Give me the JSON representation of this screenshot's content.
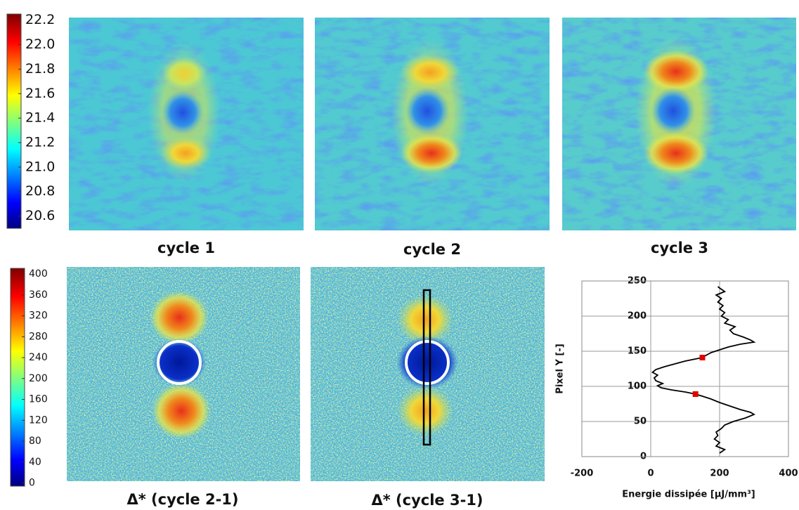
{
  "chart_data": [
    {
      "type": "heatmap",
      "panels": [
        "cycle 1",
        "cycle 2",
        "cycle 3"
      ],
      "ylim": [
        20.5,
        22.25
      ],
      "yticks": [
        20.6,
        20.8,
        {
          "value": 21,
          "label": "21.0"
        },
        21.2,
        21.4,
        21.6,
        21.8,
        {
          "value": 22,
          "label": "22.0"
        },
        22.2
      ]
    },
    {
      "type": "heatmap",
      "panels": [
        "Δ* (cycle 2-1)",
        "Δ* (cycle 3-1)"
      ],
      "ylim": [
        -6,
        411
      ],
      "yticks": [
        0,
        40,
        80,
        120,
        160,
        200,
        240,
        280,
        320,
        360,
        400
      ]
    },
    {
      "type": "line",
      "xlabel": "Energie dissipée [µJ/mm³]",
      "ylabel": "Pixel Y [-]",
      "xlim": [
        -200,
        400
      ],
      "xticks": [
        -200,
        0,
        200,
        400
      ],
      "ylim": [
        0,
        250
      ],
      "yticks": [
        0,
        50,
        100,
        150,
        200,
        250
      ],
      "grid": true,
      "color": "#000000",
      "x": [
        200,
        215,
        190,
        200,
        185,
        195,
        190,
        205,
        215,
        240,
        275,
        300,
        290,
        260,
        230,
        200,
        175,
        150,
        130,
        100,
        60,
        30,
        20,
        35,
        15,
        10,
        20,
        5,
        15,
        40,
        70,
        100,
        130,
        150,
        160,
        175,
        200,
        225,
        260,
        300,
        290,
        270,
        240,
        230,
        245,
        215,
        225,
        205,
        215,
        200,
        210,
        195,
        205,
        190,
        215,
        200,
        195
      ],
      "values": [
        5,
        10,
        15,
        20,
        25,
        30,
        35,
        40,
        45,
        50,
        55,
        60,
        63,
        67,
        72,
        77,
        82,
        86,
        89,
        92,
        95,
        98,
        101,
        104,
        108,
        112,
        116,
        120,
        124,
        128,
        132,
        136,
        139,
        141,
        144,
        148,
        152,
        156,
        160,
        163,
        166,
        170,
        175,
        180,
        185,
        190,
        195,
        200,
        205,
        210,
        215,
        220,
        225,
        230,
        235,
        240,
        242
      ],
      "markers": {
        "color": "#e00000",
        "x": [
          150,
          130
        ],
        "values": [
          141,
          89
        ]
      }
    }
  ]
}
